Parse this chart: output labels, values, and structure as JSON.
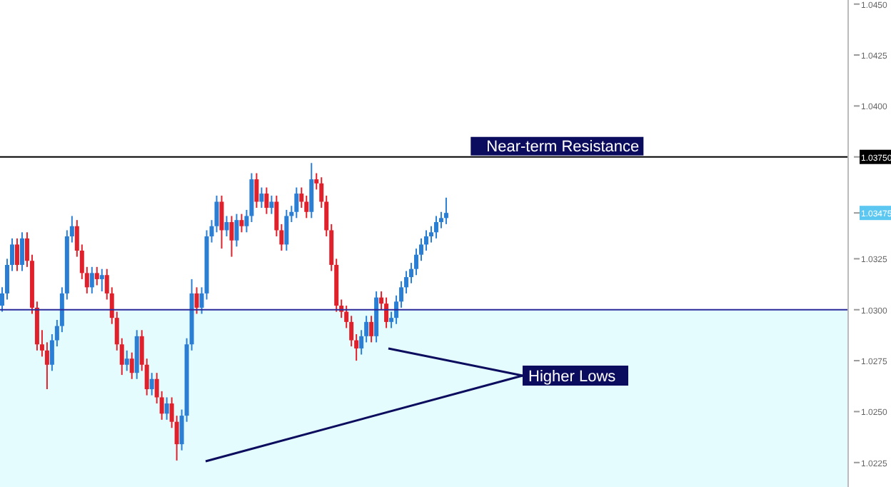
{
  "chart_data": {
    "type": "candlestick",
    "categories": [
      null,
      null,
      null,
      null,
      null,
      null,
      null,
      null,
      null,
      null,
      null,
      null,
      null,
      null,
      null,
      null,
      null,
      null,
      null,
      null,
      null,
      null,
      null,
      null,
      null,
      null,
      null,
      null,
      null,
      null,
      null,
      null,
      null,
      null,
      null,
      null,
      null,
      null,
      null,
      null,
      null,
      null,
      null,
      null,
      null,
      null,
      null,
      null,
      null,
      null,
      null,
      null,
      null,
      null,
      null,
      null,
      null,
      null,
      null,
      null,
      null,
      null,
      null,
      null,
      null,
      null,
      null,
      null,
      null,
      null,
      null,
      null,
      null,
      null,
      null,
      null,
      null,
      null,
      null,
      null,
      null,
      null,
      null,
      null,
      null,
      null,
      null,
      null,
      null,
      null,
      null,
      null,
      null,
      null,
      null,
      null,
      null,
      null,
      null,
      null,
      null,
      null,
      null,
      null,
      null,
      null,
      null,
      null,
      null,
      null,
      null,
      null,
      null,
      null,
      null,
      null,
      null,
      null,
      null,
      null,
      null,
      null,
      null,
      null,
      null,
      null,
      null,
      null,
      null,
      null,
      null,
      null,
      null,
      null,
      null,
      null,
      null,
      null,
      null,
      null,
      null,
      null,
      null,
      null,
      null,
      null,
      null,
      null,
      null,
      null,
      null,
      null,
      null,
      null,
      null,
      null,
      null,
      null,
      null,
      null,
      null,
      null,
      null,
      null,
      null,
      null,
      null,
      null,
      null,
      null
    ],
    "ohlc": [
      [
        1.0302,
        1.0311,
        1.0299,
        1.0308
      ],
      [
        1.0308,
        1.0325,
        1.0305,
        1.0322
      ],
      [
        1.0322,
        1.0335,
        1.0319,
        1.0332
      ],
      [
        1.0332,
        1.0335,
        1.0319,
        1.0322
      ],
      [
        1.0322,
        1.0338,
        1.0319,
        1.0335
      ],
      [
        1.0335,
        1.0338,
        1.0321,
        1.0324
      ],
      [
        1.0324,
        1.0327,
        1.0298,
        1.0301
      ],
      [
        1.0301,
        1.0304,
        1.028,
        1.0283
      ],
      [
        1.0283,
        1.029,
        1.0277,
        1.028
      ],
      [
        1.028,
        1.0284,
        1.0261,
        1.0273
      ],
      [
        1.0273,
        1.0288,
        1.027,
        1.0285
      ],
      [
        1.0285,
        1.0295,
        1.0282,
        1.0292
      ],
      [
        1.0292,
        1.0311,
        1.0289,
        1.0308
      ],
      [
        1.0308,
        1.0339,
        1.0305,
        1.0336
      ],
      [
        1.0336,
        1.0346,
        1.0333,
        1.0341
      ],
      [
        1.0341,
        1.0344,
        1.0326,
        1.0329
      ],
      [
        1.0329,
        1.0332,
        1.0315,
        1.0318
      ],
      [
        1.0318,
        1.0321,
        1.0308,
        1.0311
      ],
      [
        1.0311,
        1.0321,
        1.0308,
        1.0318
      ],
      [
        1.0318,
        1.0321,
        1.0312,
        1.0315
      ],
      [
        1.0315,
        1.032,
        1.0309,
        1.0317
      ],
      [
        1.0317,
        1.032,
        1.0305,
        1.0308
      ],
      [
        1.0308,
        1.0311,
        1.0293,
        1.0296
      ],
      [
        1.0296,
        1.0299,
        1.028,
        1.0283
      ],
      [
        1.0283,
        1.0286,
        1.0268,
        1.0273
      ],
      [
        1.0273,
        1.028,
        1.027,
        1.0276
      ],
      [
        1.0276,
        1.0279,
        1.0266,
        1.0269
      ],
      [
        1.0269,
        1.029,
        1.0266,
        1.0287
      ],
      [
        1.0287,
        1.029,
        1.027,
        1.0273
      ],
      [
        1.0273,
        1.0276,
        1.0258,
        1.0261
      ],
      [
        1.0261,
        1.0269,
        1.0258,
        1.0266
      ],
      [
        1.0266,
        1.0269,
        1.0254,
        1.0257
      ],
      [
        1.0257,
        1.026,
        1.0246,
        1.0249
      ],
      [
        1.0249,
        1.0257,
        1.0246,
        1.0254
      ],
      [
        1.0254,
        1.0257,
        1.0242,
        1.0245
      ],
      [
        1.0245,
        1.0248,
        1.0226,
        1.0234
      ],
      [
        1.0234,
        1.0251,
        1.0231,
        1.0248
      ],
      [
        1.0248,
        1.0286,
        1.0245,
        1.0283
      ],
      [
        1.0283,
        1.0315,
        1.028,
        1.0308
      ],
      [
        1.0308,
        1.0311,
        1.0298,
        1.0301
      ],
      [
        1.0301,
        1.0311,
        1.0298,
        1.0308
      ],
      [
        1.0308,
        1.0339,
        1.0305,
        1.0336
      ],
      [
        1.0336,
        1.0344,
        1.0333,
        1.0341
      ],
      [
        1.0341,
        1.0356,
        1.0338,
        1.0353
      ],
      [
        1.0353,
        1.0356,
        1.033,
        1.0339
      ],
      [
        1.0339,
        1.0346,
        1.0336,
        1.0343
      ],
      [
        1.0343,
        1.0346,
        1.0326,
        1.0334
      ],
      [
        1.0334,
        1.0347,
        1.0331,
        1.0344
      ],
      [
        1.0344,
        1.0347,
        1.0338,
        1.0341
      ],
      [
        1.0341,
        1.0349,
        1.0338,
        1.0346
      ],
      [
        1.0346,
        1.0367,
        1.0343,
        1.0364
      ],
      [
        1.0364,
        1.0367,
        1.035,
        1.0353
      ],
      [
        1.0353,
        1.036,
        1.035,
        1.0357
      ],
      [
        1.0357,
        1.036,
        1.0347,
        1.035
      ],
      [
        1.035,
        1.0356,
        1.0347,
        1.0353
      ],
      [
        1.0353,
        1.0356,
        1.0336,
        1.0339
      ],
      [
        1.0339,
        1.0342,
        1.0329,
        1.0332
      ],
      [
        1.0332,
        1.0349,
        1.0329,
        1.0346
      ],
      [
        1.0346,
        1.0351,
        1.0343,
        1.0348
      ],
      [
        1.0348,
        1.036,
        1.0345,
        1.0357
      ],
      [
        1.0357,
        1.036,
        1.035,
        1.0353
      ],
      [
        1.0353,
        1.0356,
        1.0345,
        1.0348
      ],
      [
        1.0348,
        1.0372,
        1.0345,
        1.0364
      ],
      [
        1.0364,
        1.0367,
        1.0359,
        1.0362
      ],
      [
        1.0362,
        1.0365,
        1.035,
        1.0353
      ],
      [
        1.0353,
        1.0356,
        1.0336,
        1.0339
      ],
      [
        1.0339,
        1.0342,
        1.0319,
        1.0322
      ],
      [
        1.0322,
        1.0325,
        1.0299,
        1.0302
      ],
      [
        1.0302,
        1.0305,
        1.0296,
        1.0299
      ],
      [
        1.0299,
        1.0302,
        1.0291,
        1.0294
      ],
      [
        1.0294,
        1.0297,
        1.0282,
        1.0285
      ],
      [
        1.0285,
        1.0288,
        1.0275,
        1.0281
      ],
      [
        1.0281,
        1.029,
        1.0278,
        1.0287
      ],
      [
        1.0287,
        1.0297,
        1.0284,
        1.0294
      ],
      [
        1.0294,
        1.0297,
        1.0284,
        1.0287
      ],
      [
        1.0287,
        1.0309,
        1.0284,
        1.0306
      ],
      [
        1.0306,
        1.0309,
        1.03,
        1.0303
      ],
      [
        1.0303,
        1.0306,
        1.0291,
        1.0294
      ],
      [
        1.0294,
        1.0299,
        1.0291,
        1.0296
      ],
      [
        1.0296,
        1.0307,
        1.0293,
        1.0304
      ],
      [
        1.0304,
        1.0314,
        1.0301,
        1.0311
      ],
      [
        1.0311,
        1.0319,
        1.0308,
        1.0316
      ],
      [
        1.0316,
        1.0323,
        1.0313,
        1.032
      ],
      [
        1.032,
        1.033,
        1.0317,
        1.0327
      ],
      [
        1.0327,
        1.0335,
        1.0324,
        1.0332
      ],
      [
        1.0332,
        1.0339,
        1.0329,
        1.0336
      ],
      [
        1.0336,
        1.0341,
        1.0333,
        1.0338
      ],
      [
        1.0338,
        1.0346,
        1.0335,
        1.0343
      ],
      [
        1.0343,
        1.0348,
        1.034,
        1.0345
      ],
      [
        1.0345,
        1.0355,
        1.0342,
        1.03475
      ],
      null,
      null,
      null,
      null,
      null,
      null,
      null,
      null,
      null,
      null,
      null,
      null,
      null,
      null,
      null,
      null,
      null,
      null,
      null,
      null,
      null,
      null,
      null,
      null,
      null,
      null,
      null,
      null,
      null,
      null,
      null,
      null,
      null,
      null,
      null,
      null,
      null,
      null,
      null,
      null,
      null,
      null,
      null,
      null,
      null,
      null,
      null,
      null,
      null,
      null,
      null,
      null,
      null,
      null,
      null,
      null,
      null,
      null,
      null,
      null,
      null,
      null,
      null,
      null,
      null,
      null,
      null,
      null,
      null,
      null,
      null,
      null,
      null,
      null,
      null,
      null,
      null,
      null,
      null,
      null
    ],
    "colors": [
      "#2a7fd4",
      "#2a7fd4",
      "#2a7fd4",
      "#e0202a",
      "#2a7fd4",
      "#e0202a",
      "#e0202a",
      "#e0202a",
      "#e0202a",
      "#e0202a",
      "#2a7fd4",
      "#2a7fd4",
      "#2a7fd4",
      "#2a7fd4",
      "#2a7fd4",
      "#e0202a",
      "#e0202a",
      "#e0202a",
      "#2a7fd4",
      "#e0202a",
      "#2a7fd4",
      "#e0202a",
      "#e0202a",
      "#e0202a",
      "#e0202a",
      "#2a7fd4",
      "#e0202a",
      "#2a7fd4",
      "#e0202a",
      "#e0202a",
      "#2a7fd4",
      "#e0202a",
      "#e0202a",
      "#2a7fd4",
      "#e0202a",
      "#e0202a",
      "#2a7fd4",
      "#2a7fd4",
      "#2a7fd4",
      "#e0202a",
      "#2a7fd4",
      "#2a7fd4",
      "#2a7fd4",
      "#2a7fd4",
      "#e0202a",
      "#2a7fd4",
      "#e0202a",
      "#2a7fd4",
      "#e0202a",
      "#2a7fd4",
      "#2a7fd4",
      "#e0202a",
      "#2a7fd4",
      "#e0202a",
      "#2a7fd4",
      "#e0202a",
      "#e0202a",
      "#2a7fd4",
      "#2a7fd4",
      "#2a7fd4",
      "#e0202a",
      "#e0202a",
      "#2a7fd4",
      "#e0202a",
      "#e0202a",
      "#e0202a",
      "#e0202a",
      "#e0202a",
      "#e0202a",
      "#e0202a",
      "#e0202a",
      "#e0202a",
      "#2a7fd4",
      "#2a7fd4",
      "#e0202a",
      "#2a7fd4",
      "#e0202a",
      "#e0202a",
      "#2a7fd4",
      "#2a7fd4",
      "#2a7fd4",
      "#2a7fd4",
      "#2a7fd4",
      "#2a7fd4",
      "#2a7fd4",
      "#2a7fd4",
      "#2a7fd4",
      "#2a7fd4",
      "#2a7fd4",
      "#2a7fd4",
      null,
      null,
      null,
      null,
      null,
      null,
      null,
      null,
      null,
      null,
      null,
      null,
      null,
      null,
      null,
      null,
      null,
      null,
      null,
      null,
      null,
      null,
      null,
      null,
      null,
      null,
      null,
      null,
      null,
      null,
      null,
      null,
      null,
      null,
      null,
      null,
      null,
      null,
      null,
      null,
      null,
      null,
      null,
      null,
      null,
      null,
      null,
      null,
      null,
      null,
      null,
      null,
      null,
      null,
      null,
      null,
      null,
      null,
      null,
      null,
      null,
      null,
      null,
      null,
      null,
      null,
      null,
      null,
      null,
      null,
      null,
      null,
      null,
      null,
      null,
      null,
      null,
      null,
      null,
      null
    ],
    "ylim": [
      1.0213,
      1.0452
    ],
    "yticks": [
      {
        "value": 1.0225,
        "label": "1.0225"
      },
      {
        "value": 1.025,
        "label": "1.0250"
      },
      {
        "value": 1.0275,
        "label": "1.0275"
      },
      {
        "value": 1.03,
        "label": "1.0300"
      },
      {
        "value": 1.0325,
        "label": "1.0325"
      },
      {
        "value": 1.03475,
        "label": "1.03475"
      },
      {
        "value": 1.0375,
        "label": "1.03750"
      },
      {
        "value": 1.04,
        "label": "1.0400"
      },
      {
        "value": 1.0425,
        "label": "1.0425"
      },
      {
        "value": 1.045,
        "label": "1.0450"
      }
    ],
    "tick_labels": "y",
    "ref_lines": [
      {
        "axis": "y",
        "value": 1.0375,
        "label": "Near-term Resistance",
        "color": "#000000"
      },
      {
        "axis": "y",
        "value": 1.03,
        "color": "#2b2b9a"
      }
    ],
    "bands": [
      {
        "axis": "y",
        "from": 1.0213,
        "to": 1.03,
        "color": "#e4fcfd"
      }
    ],
    "annotations": [
      "Higher Lows"
    ]
  }
}
